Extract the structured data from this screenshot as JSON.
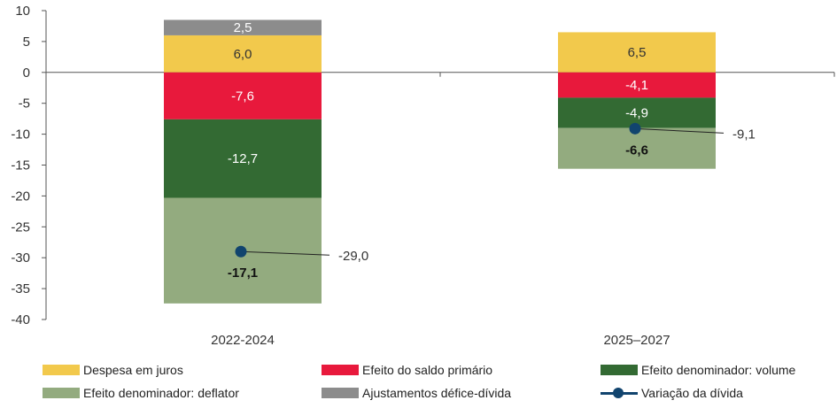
{
  "chart_data": {
    "type": "bar",
    "stacked": true,
    "categories": [
      "2022-2024",
      "2025–2027"
    ],
    "ylim": [
      -40,
      10
    ],
    "yticks": [
      10,
      5,
      0,
      -5,
      -10,
      -15,
      -20,
      -25,
      -30,
      -35,
      -40
    ],
    "ytick_labels": [
      "10",
      "5",
      "0",
      "-5",
      "-10",
      "-15",
      "-20",
      "-25",
      "-30",
      "-35",
      "-40"
    ],
    "series": [
      {
        "name": "Despesa em juros",
        "color": "#f2c94c",
        "values": [
          6.0,
          6.5
        ],
        "labels": [
          "6,0",
          "6,5"
        ],
        "label_color": "#333333"
      },
      {
        "name": "Efeito do saldo primário",
        "color": "#e8193c",
        "values": [
          -7.6,
          -4.1
        ],
        "labels": [
          "-7,6",
          "-4,1"
        ],
        "label_color": "#ffffff"
      },
      {
        "name": "Efeito denominador: volume",
        "color": "#336a33",
        "values": [
          -12.7,
          -4.9
        ],
        "labels": [
          "-12,7",
          "-4,9"
        ],
        "label_color": "#ffffff"
      },
      {
        "name": "Efeito denominador: deflator",
        "color": "#93ab7f",
        "values": [
          -17.1,
          -6.6
        ],
        "labels": [
          "-17,1",
          "-6,6"
        ],
        "label_color": "#111111"
      },
      {
        "name": "Ajustamentos défice-dívida",
        "color": "#8c8c8c",
        "values": [
          2.5,
          null
        ],
        "labels": [
          "2,5",
          ""
        ],
        "label_color": "#ffffff"
      }
    ],
    "line_series": {
      "name": "Variação da dívida",
      "color": "#11446e",
      "values": [
        -29.0,
        -9.1
      ],
      "labels": [
        "-29,0",
        "-9,1"
      ]
    }
  }
}
